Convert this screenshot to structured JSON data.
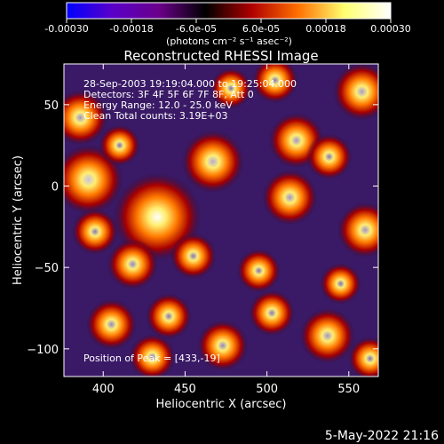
{
  "chart_data": {
    "type": "heatmap",
    "title": "Reconstructed RHESSI Image",
    "xlabel": "Heliocentric X (arcsec)",
    "ylabel": "Heliocentric Y (arcsec)",
    "xlim": [
      376,
      568
    ],
    "ylim": [
      -117,
      75
    ],
    "x_ticks": [
      400,
      450,
      500,
      550
    ],
    "y_ticks": [
      -100,
      -50,
      0,
      50
    ],
    "colorbar": {
      "unit_label": "(photons cm⁻² s⁻¹ asec⁻²)",
      "range": [
        -0.0003,
        0.0003
      ],
      "tick_labels": [
        "-0.00030",
        "-0.00018",
        "-6.0e-05",
        "6.0e-05",
        "0.00018",
        "0.00030"
      ],
      "colors": [
        "#0000ff",
        "#5a00c8",
        "#6a008a",
        "#000000",
        "#b00000",
        "#ff7000",
        "#ffff70",
        "#ffffff"
      ]
    },
    "info_lines": [
      "28-Sep-2003 19:19:04.000 to 19:25:04.000",
      "Detectors: 3F 4F 5F 6F 7F 8F, Att 0",
      "Energy Range: 12.0 - 25.0 keV",
      "Clean    Total counts: 3.19E+03"
    ],
    "peak_label": "Position of Peak = [433,-19]",
    "sources": [
      {
        "x": 433,
        "y": -19,
        "value": 0.0003
      },
      {
        "x": 391,
        "y": 4,
        "value": 0.00022
      },
      {
        "x": 386,
        "y": 42,
        "value": 0.00016
      },
      {
        "x": 467,
        "y": 15,
        "value": 0.00019
      },
      {
        "x": 518,
        "y": 28,
        "value": 0.00016
      },
      {
        "x": 558,
        "y": 58,
        "value": 0.00017
      },
      {
        "x": 538,
        "y": 18,
        "value": 0.00012
      },
      {
        "x": 514,
        "y": -7,
        "value": 0.00016
      },
      {
        "x": 560,
        "y": -27,
        "value": 0.00016
      },
      {
        "x": 395,
        "y": -28,
        "value": 0.00012
      },
      {
        "x": 418,
        "y": -48,
        "value": 0.00014
      },
      {
        "x": 455,
        "y": -43,
        "value": 0.00012
      },
      {
        "x": 495,
        "y": -52,
        "value": 0.00011
      },
      {
        "x": 405,
        "y": -85,
        "value": 0.00014
      },
      {
        "x": 440,
        "y": -80,
        "value": 0.00012
      },
      {
        "x": 430,
        "y": -105,
        "value": 0.00012
      },
      {
        "x": 473,
        "y": -98,
        "value": 0.00014
      },
      {
        "x": 503,
        "y": -78,
        "value": 0.00012
      },
      {
        "x": 537,
        "y": -92,
        "value": 0.00016
      },
      {
        "x": 563,
        "y": -106,
        "value": 0.00011
      },
      {
        "x": 545,
        "y": -60,
        "value": 0.0001
      },
      {
        "x": 478,
        "y": 60,
        "value": 0.0001
      },
      {
        "x": 505,
        "y": 65,
        "value": 0.00012
      },
      {
        "x": 410,
        "y": 25,
        "value": 0.0001
      }
    ]
  },
  "footer": {
    "date": "5-May-2022 21:16"
  }
}
